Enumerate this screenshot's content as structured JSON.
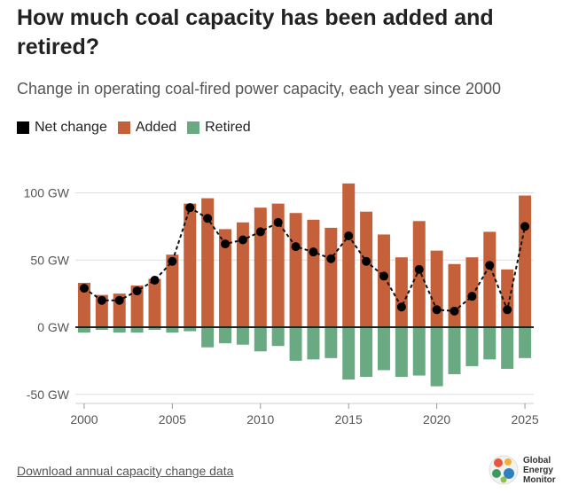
{
  "header": {
    "title": "How much coal capacity has been added and retired?",
    "subtitle": "Change in operating coal-fired power capacity, each year since 2000"
  },
  "legend": {
    "net": "Net change",
    "added": "Added",
    "retired": "Retired"
  },
  "colors": {
    "added": "#c4613b",
    "retired": "#6aaa82",
    "net": "#000000"
  },
  "footer": {
    "link": "Download annual capacity change data",
    "logo_line1": "Global",
    "logo_line2": "Energy",
    "logo_line3": "Monitor"
  },
  "chart_data": {
    "type": "bar",
    "title": "How much coal capacity has been added and retired?",
    "subtitle": "Change in operating coal-fired power capacity, each year since 2000",
    "x": [
      2000,
      2001,
      2002,
      2003,
      2004,
      2005,
      2006,
      2007,
      2008,
      2009,
      2010,
      2011,
      2012,
      2013,
      2014,
      2015,
      2016,
      2017,
      2018,
      2019,
      2020,
      2021,
      2022,
      2023,
      2024,
      2025
    ],
    "series": [
      {
        "name": "Added",
        "values": [
          33,
          24,
          25,
          31,
          36,
          54,
          92,
          96,
          73,
          78,
          89,
          92,
          85,
          80,
          74,
          107,
          86,
          69,
          52,
          79,
          57,
          47,
          52,
          71,
          43,
          98
        ]
      },
      {
        "name": "Retired",
        "values": [
          -4,
          -2,
          -4,
          -4,
          -2,
          -4,
          -3,
          -15,
          -12,
          -13,
          -18,
          -14,
          -25,
          -24,
          -23,
          -39,
          -37,
          -32,
          -37,
          -36,
          -44,
          -35,
          -29,
          -24,
          -31,
          -23
        ]
      },
      {
        "name": "Net change",
        "values": [
          29,
          20,
          20,
          27,
          35,
          49,
          89,
          81,
          62,
          65,
          71,
          78,
          60,
          56,
          51,
          68,
          49,
          38,
          15,
          43,
          13,
          12,
          23,
          46,
          13,
          75
        ]
      }
    ],
    "ylim": [
      -55,
      110
    ],
    "yticks": [
      -50,
      0,
      50,
      100
    ],
    "ytick_labels": [
      "-50 GW",
      "0 GW",
      "50 GW",
      "100 GW"
    ],
    "xticks": [
      2000,
      2005,
      2010,
      2015,
      2020,
      2025
    ],
    "xtick_labels": [
      "2000",
      "2005",
      "2010",
      "2015",
      "2020",
      "2025"
    ],
    "grid": true,
    "legend_position": "top-left"
  }
}
